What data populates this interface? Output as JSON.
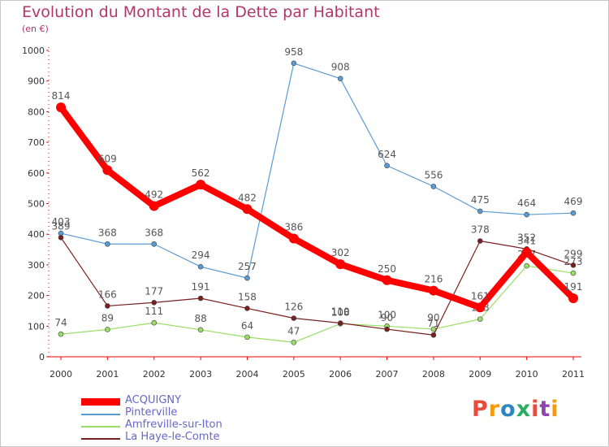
{
  "header": {
    "title": "Evolution du Montant de la Dette par Habitant",
    "subtitle": "(en €)"
  },
  "logo": {
    "text": "Proxiti",
    "colors": [
      "#e74c3c",
      "#f39c12",
      "#2e86c1",
      "#27ae60",
      "#e74c3c",
      "#8e44ad",
      "#f39c12"
    ]
  },
  "chart_data": {
    "type": "line",
    "x": [
      "2000",
      "2001",
      "2002",
      "2003",
      "2004",
      "2005",
      "2006",
      "2007",
      "2008",
      "2009",
      "2010",
      "2011"
    ],
    "ylim": [
      0,
      1000
    ],
    "yticks": [
      0,
      100,
      200,
      300,
      400,
      500,
      600,
      700,
      800,
      900,
      1000
    ],
    "grid": false,
    "legend_position": "bottom-left",
    "series": [
      {
        "name": "ACQUIGNY",
        "color": "#ff0000",
        "x": [
          "2000",
          "2001",
          "2002",
          "2003",
          "2004",
          "2005",
          "2006",
          "2007",
          "2008",
          "2009",
          "2010",
          "2011"
        ],
        "values": [
          814,
          609,
          492,
          562,
          482,
          386,
          302,
          250,
          216,
          161,
          341,
          191
        ],
        "labels": [
          "814",
          "609",
          "492",
          "562",
          "482",
          "386",
          "302",
          "250",
          "216",
          "161",
          "341",
          "191"
        ]
      },
      {
        "name": "Pinterville",
        "color": "#5b9bd5",
        "x": [
          "2000",
          "2001",
          "2002",
          "2003",
          "2004",
          "2005",
          "2006",
          "2007",
          "2008",
          "2009",
          "2010",
          "2011"
        ],
        "values": [
          403,
          368,
          368,
          294,
          257,
          958,
          908,
          624,
          556,
          475,
          464,
          469
        ],
        "labels": [
          "403",
          "368",
          "368",
          "294",
          "257",
          "958",
          "908",
          "624",
          "556",
          "475",
          "464",
          "469"
        ]
      },
      {
        "name": "Amfreville-sur-Iton",
        "color": "#99dd66",
        "x": [
          "2000",
          "2001",
          "2002",
          "2003",
          "2004",
          "2005",
          "2006",
          "2007",
          "2008",
          "2009",
          "2010",
          "2011"
        ],
        "values": [
          74,
          89,
          111,
          88,
          64,
          47,
          108,
          100,
          90,
          123,
          297,
          273
        ],
        "labels": [
          "74",
          "89",
          "111",
          "88",
          "64",
          "47",
          "108",
          "100",
          "90",
          "123",
          "297",
          "273"
        ]
      },
      {
        "name": "La Haye-le-Comte",
        "color": "#7a1f1f",
        "x": [
          "2000",
          "2001",
          "2002",
          "2003",
          "2004",
          "2005",
          "2006",
          "2007",
          "2008",
          "2009",
          "2010",
          "2011"
        ],
        "values": [
          389,
          166,
          177,
          191,
          158,
          126,
          110,
          90,
          71,
          378,
          352,
          299
        ],
        "labels": [
          "389",
          "166",
          "177",
          "191",
          "158",
          "126",
          "110",
          "90",
          "71",
          "378",
          "352",
          "299"
        ]
      }
    ]
  }
}
